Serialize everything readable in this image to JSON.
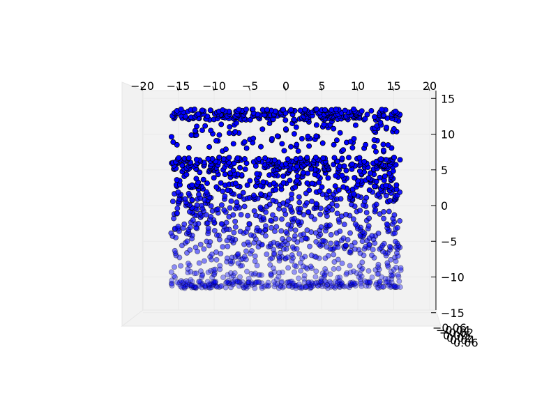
{
  "chart_data": {
    "type": "scatter",
    "projection": "3d",
    "marker_color": "#0000ff",
    "marker_edge_color": "#000000",
    "xlim": [
      -20,
      20
    ],
    "ylim": [
      -0.06,
      0.06
    ],
    "zlim": [
      -15,
      15
    ],
    "x_ticks": [
      "−20",
      "−15",
      "−10",
      "−5",
      "0",
      "5",
      "10",
      "15",
      "20"
    ],
    "x_tick_values": [
      -20,
      -15,
      -10,
      -5,
      0,
      5,
      10,
      15,
      20
    ],
    "z_ticks": [
      "15",
      "10",
      "5",
      "0",
      "−5",
      "−10",
      "−15"
    ],
    "z_tick_values": [
      15,
      10,
      5,
      0,
      -5,
      -10,
      -15
    ],
    "y_ticks": [
      "−0.06",
      "−0.04",
      "−0.02",
      "0.00",
      "0.02",
      "0.04",
      "0.06"
    ],
    "x_range": [
      -16,
      16
    ],
    "bands": [
      {
        "z": [
          12,
          13.5
        ],
        "density": "high"
      },
      {
        "z": [
          7,
          12
        ],
        "density": "low"
      },
      {
        "z": [
          5,
          6.8
        ],
        "density": "high"
      },
      {
        "z": [
          -11.5,
          5
        ],
        "density": "medium"
      }
    ]
  }
}
